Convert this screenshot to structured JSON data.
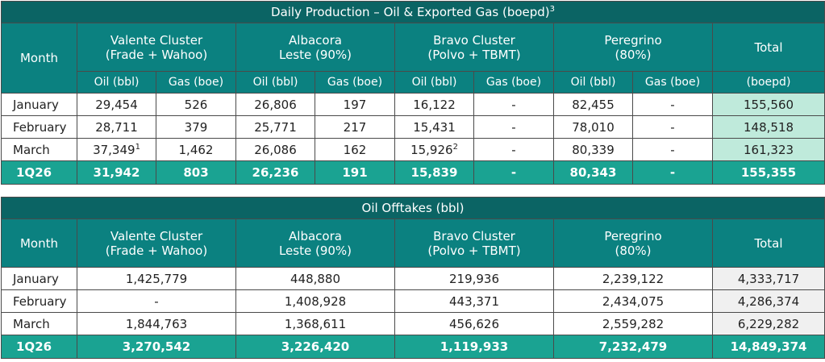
{
  "production": {
    "title": "Daily Production – Oil & Exported Gas (boepd)",
    "title_note": "3",
    "month_header": "Month",
    "groups": [
      {
        "line1": "Valente Cluster",
        "line2": "(Frade + Wahoo)"
      },
      {
        "line1": "Albacora",
        "line2": "Leste (90%)"
      },
      {
        "line1": "Bravo Cluster",
        "line2": "(Polvo + TBMT)"
      },
      {
        "line1": "Peregrino",
        "line2": "(80%)"
      }
    ],
    "total_header": "Total",
    "sub_headers": [
      "Oil (bbl)",
      "Gas (boe)",
      "Oil (bbl)",
      "Gas (boe)",
      "Oil (bbl)",
      "Gas (boe)",
      "Oil (bbl)",
      "Gas (boe)",
      "(boepd)"
    ],
    "rows": [
      {
        "month": "January",
        "cells": [
          "29,454",
          "526",
          "26,806",
          "197",
          "16,122",
          "-",
          "82,455",
          "-",
          "155,560"
        ]
      },
      {
        "month": "February",
        "cells": [
          "28,711",
          "379",
          "25,771",
          "217",
          "15,431",
          "-",
          "78,010",
          "-",
          "148,518"
        ]
      },
      {
        "month": "March",
        "cells": [
          "37,349",
          "1,462",
          "26,086",
          "162",
          "15,926",
          "-",
          "80,339",
          "-",
          "161,323"
        ]
      }
    ],
    "march_notes": [
      "1",
      "2"
    ],
    "summary": {
      "month": "1Q26",
      "cells": [
        "31,942",
        "803",
        "26,236",
        "191",
        "15,839",
        "-",
        "80,343",
        "-",
        "155,355"
      ]
    }
  },
  "offtakes": {
    "title": "Oil Offtakes (bbl)",
    "month_header": "Month",
    "groups": [
      {
        "line1": "Valente Cluster",
        "line2": "(Frade + Wahoo)"
      },
      {
        "line1": "Albacora",
        "line2": "Leste (90%)"
      },
      {
        "line1": "Bravo Cluster",
        "line2": "(Polvo + TBMT)"
      },
      {
        "line1": "Peregrino",
        "line2": "(80%)"
      }
    ],
    "total_header": "Total",
    "rows": [
      {
        "month": "January",
        "cells": [
          "1,425,779",
          "448,880",
          "219,936",
          "2,239,122",
          "4,333,717"
        ]
      },
      {
        "month": "February",
        "cells": [
          "-",
          "1,408,928",
          "443,371",
          "2,434,075",
          "4,286,374"
        ]
      },
      {
        "month": "March",
        "cells": [
          "1,844,763",
          "1,368,611",
          "456,626",
          "2,559,282",
          "6,229,282"
        ]
      }
    ],
    "summary": {
      "month": "1Q26",
      "cells": [
        "3,270,542",
        "3,226,420",
        "1,119,933",
        "7,232,479",
        "14,849,374"
      ]
    }
  },
  "colors": {
    "title_bg": "#0b6464",
    "header_bg": "#0b8180",
    "summary_bg": "#1aa392",
    "total_production_bg": "#bfeadb",
    "total_offtakes_bg": "#f0f0f0"
  }
}
